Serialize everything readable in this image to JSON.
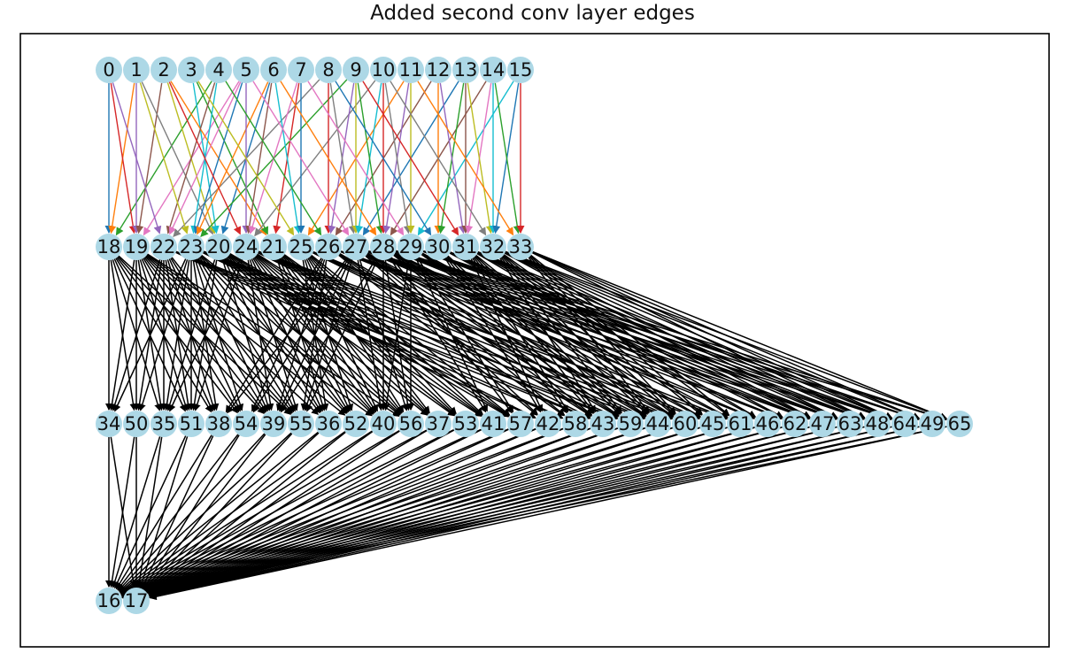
{
  "title": "Added second conv layer edges",
  "node_color": "#add8e6",
  "layers": [
    [
      "0",
      "1",
      "2",
      "3",
      "4",
      "5",
      "6",
      "7",
      "8",
      "9",
      "10",
      "11",
      "12",
      "13",
      "14",
      "15"
    ],
    [
      "18",
      "19",
      "22",
      "23",
      "20",
      "24",
      "21",
      "25",
      "26",
      "27",
      "28",
      "29",
      "30",
      "31",
      "32",
      "33"
    ],
    [
      "34",
      "50",
      "35",
      "51",
      "38",
      "54",
      "39",
      "55",
      "36",
      "52",
      "40",
      "56",
      "37",
      "53",
      "41",
      "57",
      "42",
      "58",
      "43",
      "59",
      "44",
      "60",
      "45",
      "61",
      "46",
      "62",
      "47",
      "63",
      "48",
      "64",
      "49",
      "65"
    ],
    [
      "16",
      "17"
    ]
  ],
  "edge_palette": [
    "#1f77b4",
    "#ff7f0e",
    "#2ca02c",
    "#d62728",
    "#9467bd",
    "#8c564b",
    "#e377c2",
    "#7f7f7f",
    "#bcbd22",
    "#17becf"
  ],
  "later_edge_color": "#000000"
}
